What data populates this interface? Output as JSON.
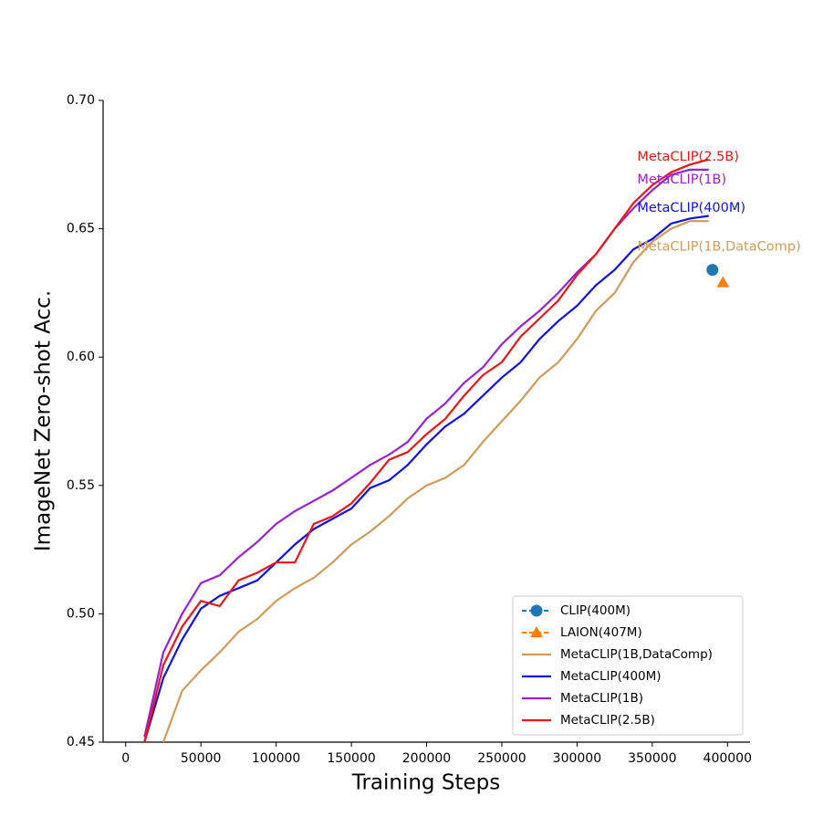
{
  "chart_data": {
    "type": "line",
    "xlabel": "Training Steps",
    "ylabel": "ImageNet Zero-shot Acc.",
    "x": [
      12500,
      25000,
      37500,
      50000,
      62500,
      75000,
      87500,
      100000,
      112500,
      125000,
      137500,
      150000,
      162500,
      175000,
      187500,
      200000,
      212500,
      225000,
      237500,
      250000,
      262500,
      275000,
      287500,
      300000,
      312500,
      325000,
      337500,
      350000,
      362500,
      375000,
      387500
    ],
    "series": [
      {
        "name": "MetaCLIP(1B,DataComp)",
        "color": "#d39a5a",
        "values": [
          null,
          0.45,
          0.47,
          0.478,
          0.485,
          0.493,
          0.498,
          0.505,
          0.51,
          0.514,
          0.52,
          0.527,
          0.532,
          0.538,
          0.545,
          0.55,
          0.553,
          0.558,
          0.567,
          0.575,
          0.583,
          0.592,
          0.598,
          0.607,
          0.618,
          0.625,
          0.637,
          0.645,
          0.65,
          0.653,
          0.653
        ]
      },
      {
        "name": "MetaCLIP(400M)",
        "color": "#1010e8",
        "values": [
          0.45,
          0.475,
          0.49,
          0.502,
          0.507,
          0.51,
          0.513,
          0.52,
          0.527,
          0.533,
          0.537,
          0.541,
          0.549,
          0.552,
          0.558,
          0.566,
          0.573,
          0.578,
          0.585,
          0.592,
          0.598,
          0.607,
          0.614,
          0.62,
          0.628,
          0.634,
          0.642,
          0.646,
          0.652,
          0.654,
          0.655
        ]
      },
      {
        "name": "MetaCLIP(1B)",
        "color": "#9a20d8",
        "values": [
          0.452,
          0.485,
          0.5,
          0.512,
          0.515,
          0.522,
          0.528,
          0.535,
          0.54,
          0.544,
          0.548,
          0.553,
          0.558,
          0.562,
          0.567,
          0.576,
          0.582,
          0.59,
          0.596,
          0.605,
          0.612,
          0.618,
          0.625,
          0.633,
          0.64,
          0.65,
          0.658,
          0.665,
          0.671,
          0.673,
          0.673
        ]
      },
      {
        "name": "MetaCLIP(2.5B)",
        "color": "#ee1515",
        "values": [
          0.45,
          0.48,
          0.495,
          0.505,
          0.503,
          0.513,
          0.516,
          0.52,
          0.52,
          0.535,
          0.538,
          0.543,
          0.551,
          0.56,
          0.563,
          0.57,
          0.576,
          0.585,
          0.593,
          0.598,
          0.608,
          0.615,
          0.622,
          0.632,
          0.64,
          0.65,
          0.66,
          0.667,
          0.672,
          0.675,
          0.677
        ]
      }
    ],
    "points": [
      {
        "name": "CLIP(400M)",
        "color": "#1f77b4",
        "marker": "circle",
        "x": 390000,
        "y": 0.634
      },
      {
        "name": "LAION(407M)",
        "color": "#ff7f0e",
        "marker": "triangle",
        "x": 397000,
        "y": 0.629
      }
    ],
    "annotations": [
      {
        "text": "MetaCLIP(2.5B)",
        "x": 340000,
        "y": 0.678,
        "color": "#ee1515"
      },
      {
        "text": "MetaCLIP(1B)",
        "x": 340000,
        "y": 0.669,
        "color": "#9a20d8"
      },
      {
        "text": "MetaCLIP(400M)",
        "x": 340000,
        "y": 0.658,
        "color": "#1010e8"
      },
      {
        "text": "MetaCLIP(1B,DataComp)",
        "x": 340000,
        "y": 0.643,
        "color": "#d39a5a"
      }
    ],
    "xlim": [
      -15000,
      415000
    ],
    "ylim": [
      0.45,
      0.7
    ],
    "xticks": [
      0,
      50000,
      100000,
      150000,
      200000,
      250000,
      300000,
      350000,
      400000
    ],
    "yticks": [
      0.45,
      {
        "value": 0.5,
        "label": "0.50"
      },
      0.55,
      {
        "value": 0.6,
        "label": "0.60"
      },
      0.65,
      {
        "value": 0.7,
        "label": "0.70"
      }
    ],
    "legend": "lower right"
  }
}
